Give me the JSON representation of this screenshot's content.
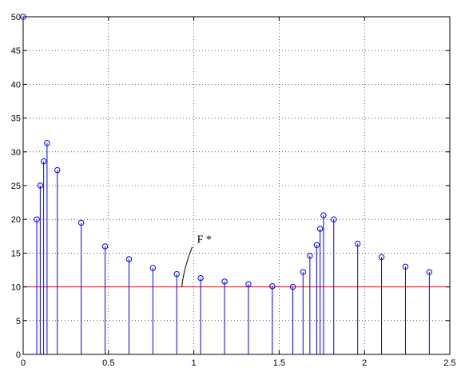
{
  "chart_data": {
    "type": "stem",
    "title": "",
    "xlabel": "",
    "ylabel": "",
    "xlim": [
      0,
      2.5
    ],
    "ylim": [
      0,
      50
    ],
    "xticks": [
      0,
      0.5,
      1,
      1.5,
      2,
      2.5
    ],
    "xtick_labels": [
      "0",
      "0.5",
      "1",
      "1.5",
      "2",
      "2.5"
    ],
    "yticks": [
      0,
      5,
      10,
      15,
      20,
      25,
      30,
      35,
      40,
      45,
      50
    ],
    "ytick_labels": [
      "0",
      "5",
      "10",
      "15",
      "20",
      "25",
      "30",
      "35",
      "40",
      "45",
      "50"
    ],
    "grid": true,
    "stem_color": "#0000ff",
    "threshold_color": "#ff0000",
    "series": [
      {
        "x": [
          0,
          0.08,
          0.1,
          0.12,
          0.14,
          0.2,
          0.34,
          0.48,
          0.62,
          0.76,
          0.9,
          1.04,
          1.18,
          1.32,
          1.46,
          1.58,
          1.64,
          1.68,
          1.72,
          1.74,
          1.76,
          1.82,
          1.96,
          2.1,
          2.24,
          2.38
        ],
        "y": [
          50,
          20,
          25,
          28.6,
          31.3,
          27.3,
          19.5,
          16,
          14.1,
          12.8,
          11.9,
          11.3,
          10.8,
          10.4,
          10.1,
          10,
          12.2,
          14.6,
          16.2,
          18.6,
          20.6,
          20,
          16.4,
          14.4,
          13,
          12.2
        ]
      }
    ],
    "threshold": {
      "y": 10
    },
    "annotations": [
      {
        "text": "F *",
        "x": 0.93,
        "y": 10
      }
    ]
  }
}
